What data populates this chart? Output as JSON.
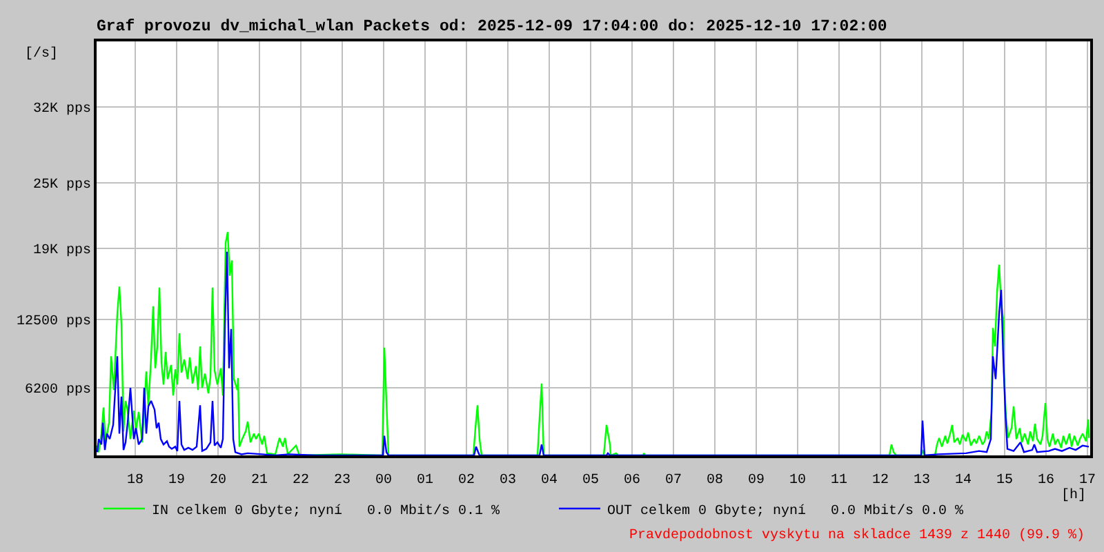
{
  "chart_data": {
    "type": "line",
    "title": "Graf provozu dv_michal_wlan Packets od: 2025-12-09 17:04:00 do: 2025-12-10 17:02:00",
    "xlabel": "[h]",
    "ylabel": "[/s]",
    "annotations": [
      "Pravdepodobnost vyskytu na skladce 1439 z 1440 (99.9 %)"
    ],
    "series": [
      {
        "name": "IN celkem 0 Gbyte; nyní   0.0 Mbit/s 0.1 %",
        "color": "#00ff00",
        "x": [
          "2025-12-09T17:05",
          "2025-12-09T17:07",
          "2025-12-09T17:11",
          "2025-12-09T17:14",
          "2025-12-09T17:17",
          "2025-12-09T17:22",
          "2025-12-09T17:25",
          "2025-12-09T17:29",
          "2025-12-09T17:34",
          "2025-12-09T17:37",
          "2025-12-09T17:40",
          "2025-12-09T17:43",
          "2025-12-09T17:46",
          "2025-12-09T17:49",
          "2025-12-09T17:53",
          "2025-12-09T17:58",
          "2025-12-09T18:01",
          "2025-12-09T18:05",
          "2025-12-09T18:10",
          "2025-12-09T18:13",
          "2025-12-09T18:16",
          "2025-12-09T18:19",
          "2025-12-09T18:23",
          "2025-12-09T18:26",
          "2025-12-09T18:29",
          "2025-12-09T18:32",
          "2025-12-09T18:35",
          "2025-12-09T18:38",
          "2025-12-09T18:41",
          "2025-12-09T18:44",
          "2025-12-09T18:47",
          "2025-12-09T18:52",
          "2025-12-09T18:55",
          "2025-12-09T18:58",
          "2025-12-09T19:01",
          "2025-12-09T19:04",
          "2025-12-09T19:07",
          "2025-12-09T19:11",
          "2025-12-09T19:16",
          "2025-12-09T19:19",
          "2025-12-09T19:23",
          "2025-12-09T19:28",
          "2025-12-09T19:31",
          "2025-12-09T19:34",
          "2025-12-09T19:37",
          "2025-12-09T19:41",
          "2025-12-09T19:46",
          "2025-12-09T19:49",
          "2025-12-09T19:52",
          "2025-12-09T19:55",
          "2025-12-09T19:59",
          "2025-12-09T20:04",
          "2025-12-09T20:07",
          "2025-12-09T20:11",
          "2025-12-09T20:14",
          "2025-12-09T20:17",
          "2025-12-09T20:20",
          "2025-12-09T20:23",
          "2025-12-09T20:28",
          "2025-12-09T20:29",
          "2025-12-09T20:31",
          "2025-12-09T20:35",
          "2025-12-09T20:40",
          "2025-12-09T20:43",
          "2025-12-09T20:47",
          "2025-12-09T20:52",
          "2025-12-09T20:55",
          "2025-12-09T20:59",
          "2025-12-09T21:04",
          "2025-12-09T21:07",
          "2025-12-09T21:11",
          "2025-12-09T21:23",
          "2025-12-09T21:29",
          "2025-12-09T21:34",
          "2025-12-09T21:37",
          "2025-12-09T21:41",
          "2025-12-09T21:53",
          "2025-12-09T21:58",
          "2025-12-09T22:58",
          "2025-12-09T23:58",
          "2025-12-10T00:01",
          "2025-12-10T00:04",
          "2025-12-10T00:07",
          "2025-12-10T02:10",
          "2025-12-10T02:13",
          "2025-12-10T02:16",
          "2025-12-10T02:19",
          "2025-12-10T02:22",
          "2025-12-10T03:43",
          "2025-12-10T03:46",
          "2025-12-10T03:49",
          "2025-12-10T03:52",
          "2025-12-10T05:19",
          "2025-12-10T05:23",
          "2025-12-10T05:28",
          "2025-12-10T05:29",
          "2025-12-10T05:37",
          "2025-12-10T05:40",
          "2025-12-10T06:16",
          "2025-12-10T06:17",
          "2025-12-10T06:19",
          "2025-12-10T12:13",
          "2025-12-10T12:16",
          "2025-12-10T12:19",
          "2025-12-10T12:23",
          "2025-12-10T12:59",
          "2025-12-10T13:01",
          "2025-12-10T13:04",
          "2025-12-10T13:19",
          "2025-12-10T13:22",
          "2025-12-10T13:25",
          "2025-12-10T13:29",
          "2025-12-10T13:34",
          "2025-12-10T13:37",
          "2025-12-10T13:41",
          "2025-12-10T13:44",
          "2025-12-10T13:47",
          "2025-12-10T13:52",
          "2025-12-10T13:55",
          "2025-12-10T13:59",
          "2025-12-10T14:04",
          "2025-12-10T14:07",
          "2025-12-10T14:11",
          "2025-12-10T14:16",
          "2025-12-10T14:19",
          "2025-12-10T14:23",
          "2025-12-10T14:28",
          "2025-12-10T14:31",
          "2025-12-10T14:34",
          "2025-12-10T14:37",
          "2025-12-10T14:41",
          "2025-12-10T14:43",
          "2025-12-10T14:46",
          "2025-12-10T14:49",
          "2025-12-10T14:52",
          "2025-12-10T14:55",
          "2025-12-10T14:58",
          "2025-12-10T14:59",
          "2025-12-10T15:02",
          "2025-12-10T15:05",
          "2025-12-10T15:10",
          "2025-12-10T15:13",
          "2025-12-10T15:17",
          "2025-12-10T15:22",
          "2025-12-10T15:25",
          "2025-12-10T15:29",
          "2025-12-10T15:34",
          "2025-12-10T15:37",
          "2025-12-10T15:41",
          "2025-12-10T15:44",
          "2025-12-10T15:47",
          "2025-12-10T15:52",
          "2025-12-10T15:55",
          "2025-12-10T15:59",
          "2025-12-10T16:02",
          "2025-12-10T16:05",
          "2025-12-10T16:10",
          "2025-12-10T16:13",
          "2025-12-10T16:17",
          "2025-12-10T16:22",
          "2025-12-10T16:25",
          "2025-12-10T16:29",
          "2025-12-10T16:34",
          "2025-12-10T16:37",
          "2025-12-10T16:41",
          "2025-12-10T16:46",
          "2025-12-10T16:49",
          "2025-12-10T16:53",
          "2025-12-10T16:58",
          "2025-12-10T17:01",
          "2025-12-10T17:02"
        ],
        "values": [
          900,
          300,
          2000,
          4400,
          1200,
          3000,
          9100,
          6000,
          13000,
          15500,
          12000,
          2200,
          5000,
          4100,
          1500,
          4100,
          2300,
          4000,
          1200,
          4200,
          7700,
          4500,
          9000,
          13700,
          8000,
          10000,
          15400,
          8500,
          6500,
          9500,
          7000,
          8300,
          5500,
          7900,
          6500,
          11200,
          7600,
          8800,
          7000,
          9000,
          6600,
          8200,
          6000,
          10000,
          6200,
          7500,
          5700,
          7200,
          15400,
          7800,
          6500,
          8000,
          5500,
          19500,
          20500,
          16500,
          17900,
          7000,
          6000,
          7100,
          800,
          1500,
          2200,
          3100,
          1200,
          2000,
          1500,
          2000,
          1000,
          1800,
          200,
          100,
          1600,
          800,
          1600,
          100,
          900,
          0,
          100,
          0,
          9900,
          5000,
          0,
          0,
          2500,
          4600,
          1500,
          0,
          0,
          3500,
          6600,
          0,
          0,
          2800,
          1000,
          0,
          200,
          0,
          0,
          200,
          0,
          0,
          1000,
          300,
          0,
          0,
          500,
          0,
          0,
          1000,
          1600,
          800,
          1800,
          1100,
          2000,
          2800,
          1200,
          1600,
          1000,
          1900,
          1300,
          2100,
          900,
          1500,
          1100,
          1800,
          1000,
          1300,
          2200,
          1500,
          4000,
          11700,
          10000,
          15000,
          17500,
          14000,
          12500,
          7500,
          3500,
          1600,
          2500,
          4500,
          1500,
          2500,
          1200,
          2000,
          1000,
          2200,
          1300,
          2900,
          1500,
          1000,
          1800,
          4800,
          1500,
          800,
          2000,
          1000,
          1500,
          700,
          1800,
          1000,
          2000,
          800,
          1800,
          900,
          1500,
          2000,
          1300,
          3300,
          1600
        ]
      },
      {
        "name": "OUT celkem 0 Gbyte; nyní   0.0 Mbit/s 0.0 %",
        "color": "#0000ff",
        "x": [
          "2025-12-09T17:05",
          "2025-12-09T17:07",
          "2025-12-09T17:11",
          "2025-12-09T17:13",
          "2025-12-09T17:16",
          "2025-12-09T17:19",
          "2025-12-09T17:23",
          "2025-12-09T17:28",
          "2025-12-09T17:31",
          "2025-12-09T17:34",
          "2025-12-09T17:37",
          "2025-12-09T17:40",
          "2025-12-09T17:43",
          "2025-12-09T17:46",
          "2025-12-09T17:49",
          "2025-12-09T17:53",
          "2025-12-09T17:58",
          "2025-12-09T18:01",
          "2025-12-09T18:05",
          "2025-12-09T18:10",
          "2025-12-09T18:13",
          "2025-12-09T18:16",
          "2025-12-09T18:19",
          "2025-12-09T18:23",
          "2025-12-09T18:28",
          "2025-12-09T18:31",
          "2025-12-09T18:34",
          "2025-12-09T18:37",
          "2025-12-09T18:41",
          "2025-12-09T18:46",
          "2025-12-09T18:49",
          "2025-12-09T18:53",
          "2025-12-09T18:58",
          "2025-12-09T19:01",
          "2025-12-09T19:04",
          "2025-12-09T19:07",
          "2025-12-09T19:11",
          "2025-12-09T19:17",
          "2025-12-09T19:23",
          "2025-12-09T19:29",
          "2025-12-09T19:34",
          "2025-12-09T19:37",
          "2025-12-09T19:43",
          "2025-12-09T19:49",
          "2025-12-09T19:52",
          "2025-12-09T19:55",
          "2025-12-09T19:59",
          "2025-12-09T20:04",
          "2025-12-09T20:07",
          "2025-12-09T20:10",
          "2025-12-09T20:13",
          "2025-12-09T20:16",
          "2025-12-09T20:19",
          "2025-12-09T20:22",
          "2025-12-09T20:25",
          "2025-12-09T20:34",
          "2025-12-09T20:43",
          "2025-12-09T21:04",
          "2025-12-09T21:23",
          "2025-12-09T21:43",
          "2025-12-09T22:23",
          "2025-12-09T23:59",
          "2025-12-10T00:01",
          "2025-12-10T00:04",
          "2025-12-10T00:07",
          "2025-12-10T02:11",
          "2025-12-10T02:14",
          "2025-12-10T02:17",
          "2025-12-10T02:19",
          "2025-12-10T03:46",
          "2025-12-10T03:49",
          "2025-12-10T03:52",
          "2025-12-10T05:23",
          "2025-12-10T05:25",
          "2025-12-10T05:28",
          "2025-12-10T12:59",
          "2025-12-10T13:01",
          "2025-12-10T13:04",
          "2025-12-10T13:23",
          "2025-12-10T14:04",
          "2025-12-10T14:23",
          "2025-12-10T14:34",
          "2025-12-10T14:40",
          "2025-12-10T14:43",
          "2025-12-10T14:47",
          "2025-12-10T14:52",
          "2025-12-10T14:55",
          "2025-12-10T14:58",
          "2025-12-10T15:01",
          "2025-12-10T15:04",
          "2025-12-10T15:13",
          "2025-12-10T15:23",
          "2025-12-10T15:28",
          "2025-12-10T15:40",
          "2025-12-10T15:43",
          "2025-12-10T15:47",
          "2025-12-10T16:04",
          "2025-12-10T16:13",
          "2025-12-10T16:23",
          "2025-12-10T16:34",
          "2025-12-10T16:43",
          "2025-12-10T16:53",
          "2025-12-10T17:02"
        ],
        "values": [
          300,
          1500,
          1000,
          3000,
          500,
          2000,
          1500,
          2800,
          6000,
          9100,
          2000,
          5400,
          500,
          1200,
          3000,
          6200,
          1500,
          2500,
          1000,
          1500,
          6200,
          2000,
          4500,
          5000,
          4200,
          2500,
          3000,
          1500,
          1000,
          1300,
          800,
          600,
          800,
          400,
          5000,
          1000,
          500,
          700,
          500,
          800,
          4600,
          400,
          600,
          1200,
          5000,
          900,
          1200,
          700,
          1500,
          12000,
          18700,
          8000,
          11600,
          1500,
          300,
          100,
          200,
          100,
          0,
          100,
          0,
          0,
          1800,
          300,
          0,
          0,
          800,
          300,
          0,
          0,
          1000,
          0,
          0,
          200,
          0,
          0,
          3200,
          0,
          100,
          200,
          400,
          300,
          1500,
          9100,
          7000,
          13000,
          15200,
          9000,
          4000,
          600,
          400,
          1200,
          300,
          500,
          1000,
          300,
          400,
          600,
          400,
          700,
          500,
          900,
          800
        ]
      }
    ],
    "xlim": [
      "2025-12-09T17:04",
      "2025-12-10T17:04"
    ],
    "xticks": [
      {
        "value": "2025-12-09T18:00",
        "label": "18"
      },
      {
        "value": "2025-12-09T19:00",
        "label": "19"
      },
      {
        "value": "2025-12-09T20:00",
        "label": "20"
      },
      {
        "value": "2025-12-09T21:00",
        "label": "21"
      },
      {
        "value": "2025-12-09T22:00",
        "label": "22"
      },
      {
        "value": "2025-12-09T23:00",
        "label": "23"
      },
      {
        "value": "2025-12-10T00:00",
        "label": "00"
      },
      {
        "value": "2025-12-10T01:00",
        "label": "01"
      },
      {
        "value": "2025-12-10T02:00",
        "label": "02"
      },
      {
        "value": "2025-12-10T03:00",
        "label": "03"
      },
      {
        "value": "2025-12-10T04:00",
        "label": "04"
      },
      {
        "value": "2025-12-10T05:00",
        "label": "05"
      },
      {
        "value": "2025-12-10T06:00",
        "label": "06"
      },
      {
        "value": "2025-12-10T07:00",
        "label": "07"
      },
      {
        "value": "2025-12-10T08:00",
        "label": "08"
      },
      {
        "value": "2025-12-10T09:00",
        "label": "09"
      },
      {
        "value": "2025-12-10T10:00",
        "label": "10"
      },
      {
        "value": "2025-12-10T11:00",
        "label": "11"
      },
      {
        "value": "2025-12-10T12:00",
        "label": "12"
      },
      {
        "value": "2025-12-10T13:00",
        "label": "13"
      },
      {
        "value": "2025-12-10T14:00",
        "label": "14"
      },
      {
        "value": "2025-12-10T15:00",
        "label": "15"
      },
      {
        "value": "2025-12-10T16:00",
        "label": "16"
      },
      {
        "value": "2025-12-10T17:00",
        "label": "17"
      }
    ],
    "ylim": [
      0,
      38000
    ],
    "yticks": [
      {
        "value": 6200,
        "label": "6200 pps"
      },
      {
        "value": 12500,
        "label": "12500 pps"
      },
      {
        "value": 19000,
        "label": "19K pps"
      },
      {
        "value": 25000,
        "label": "25K pps"
      },
      {
        "value": 32000,
        "label": "32K pps"
      }
    ],
    "grid": true,
    "legend": "bottom"
  }
}
